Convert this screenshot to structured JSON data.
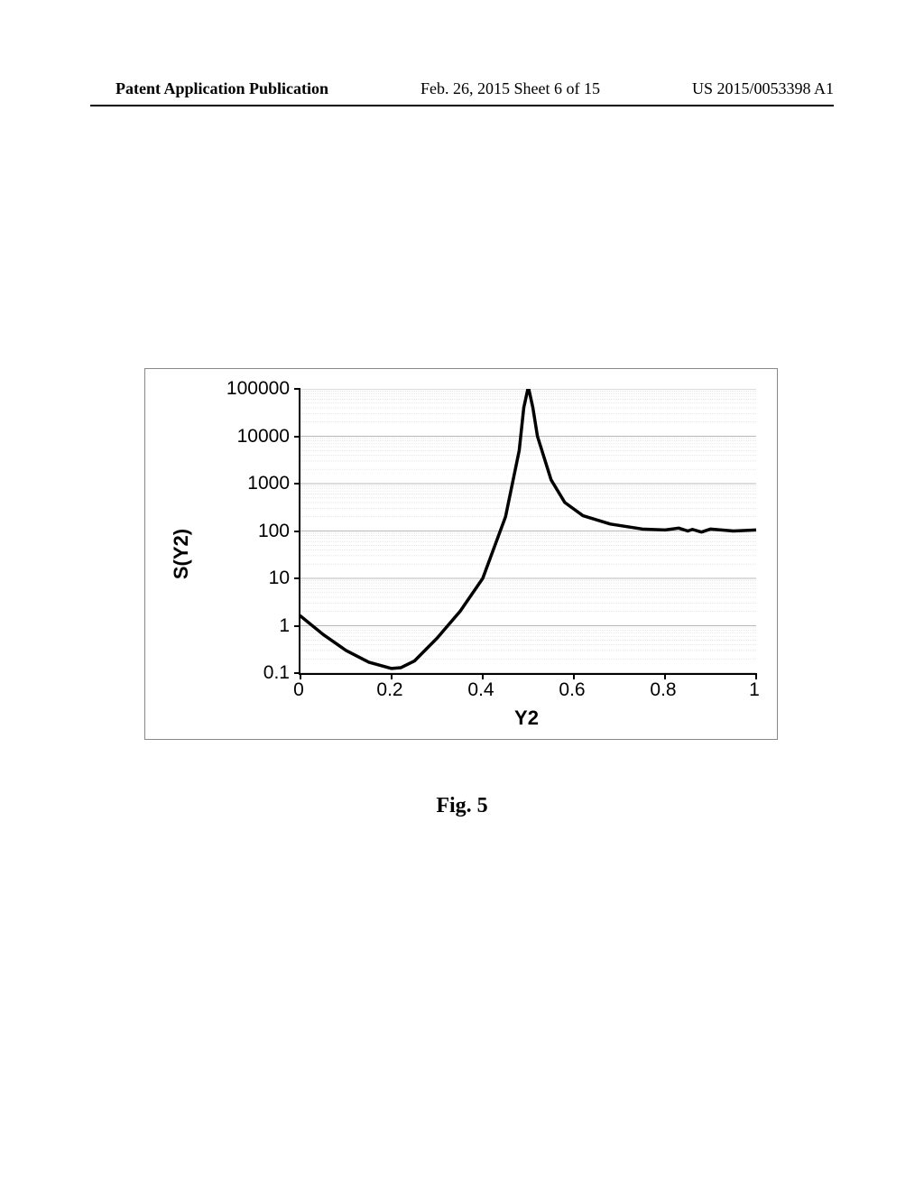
{
  "header": {
    "left": "Patent Application Publication",
    "center": "Feb. 26, 2015  Sheet 6 of 15",
    "right": "US 2015/0053398 A1"
  },
  "caption": "Fig. 5",
  "chart": {
    "type": "line",
    "xlabel": "Y2",
    "ylabel": "S(Y2)",
    "xlim": [
      0,
      1
    ],
    "xtick_step": 0.2,
    "xtick_labels": [
      "0",
      "0.2",
      "0.4",
      "0.6",
      "0.8",
      "1"
    ],
    "yscale": "log",
    "ylim_exp": [
      -1,
      5
    ],
    "ytick_labels": [
      "0.1",
      "1",
      "10",
      "100",
      "1000",
      "10000",
      "100000"
    ],
    "grid_major_color": "#b8b8b8",
    "grid_minor_color": "#d8d8d8",
    "line_color": "#000000",
    "line_width": 3.5,
    "background_color": "#ffffff",
    "label_fontsize": 22,
    "tick_fontsize": 21,
    "x": [
      0.0,
      0.05,
      0.1,
      0.15,
      0.2,
      0.22,
      0.25,
      0.3,
      0.35,
      0.4,
      0.45,
      0.48,
      0.49,
      0.5,
      0.51,
      0.52,
      0.55,
      0.58,
      0.62,
      0.68,
      0.75,
      0.8,
      0.83,
      0.85,
      0.86,
      0.88,
      0.9,
      0.95,
      1.0
    ],
    "y": [
      1.6,
      0.65,
      0.3,
      0.17,
      0.125,
      0.13,
      0.18,
      0.55,
      2.0,
      10,
      200,
      5000,
      40000,
      110000,
      40000,
      10000,
      1200,
      400,
      210,
      140,
      110,
      105,
      115,
      100,
      108,
      95,
      110,
      100,
      105
    ]
  }
}
